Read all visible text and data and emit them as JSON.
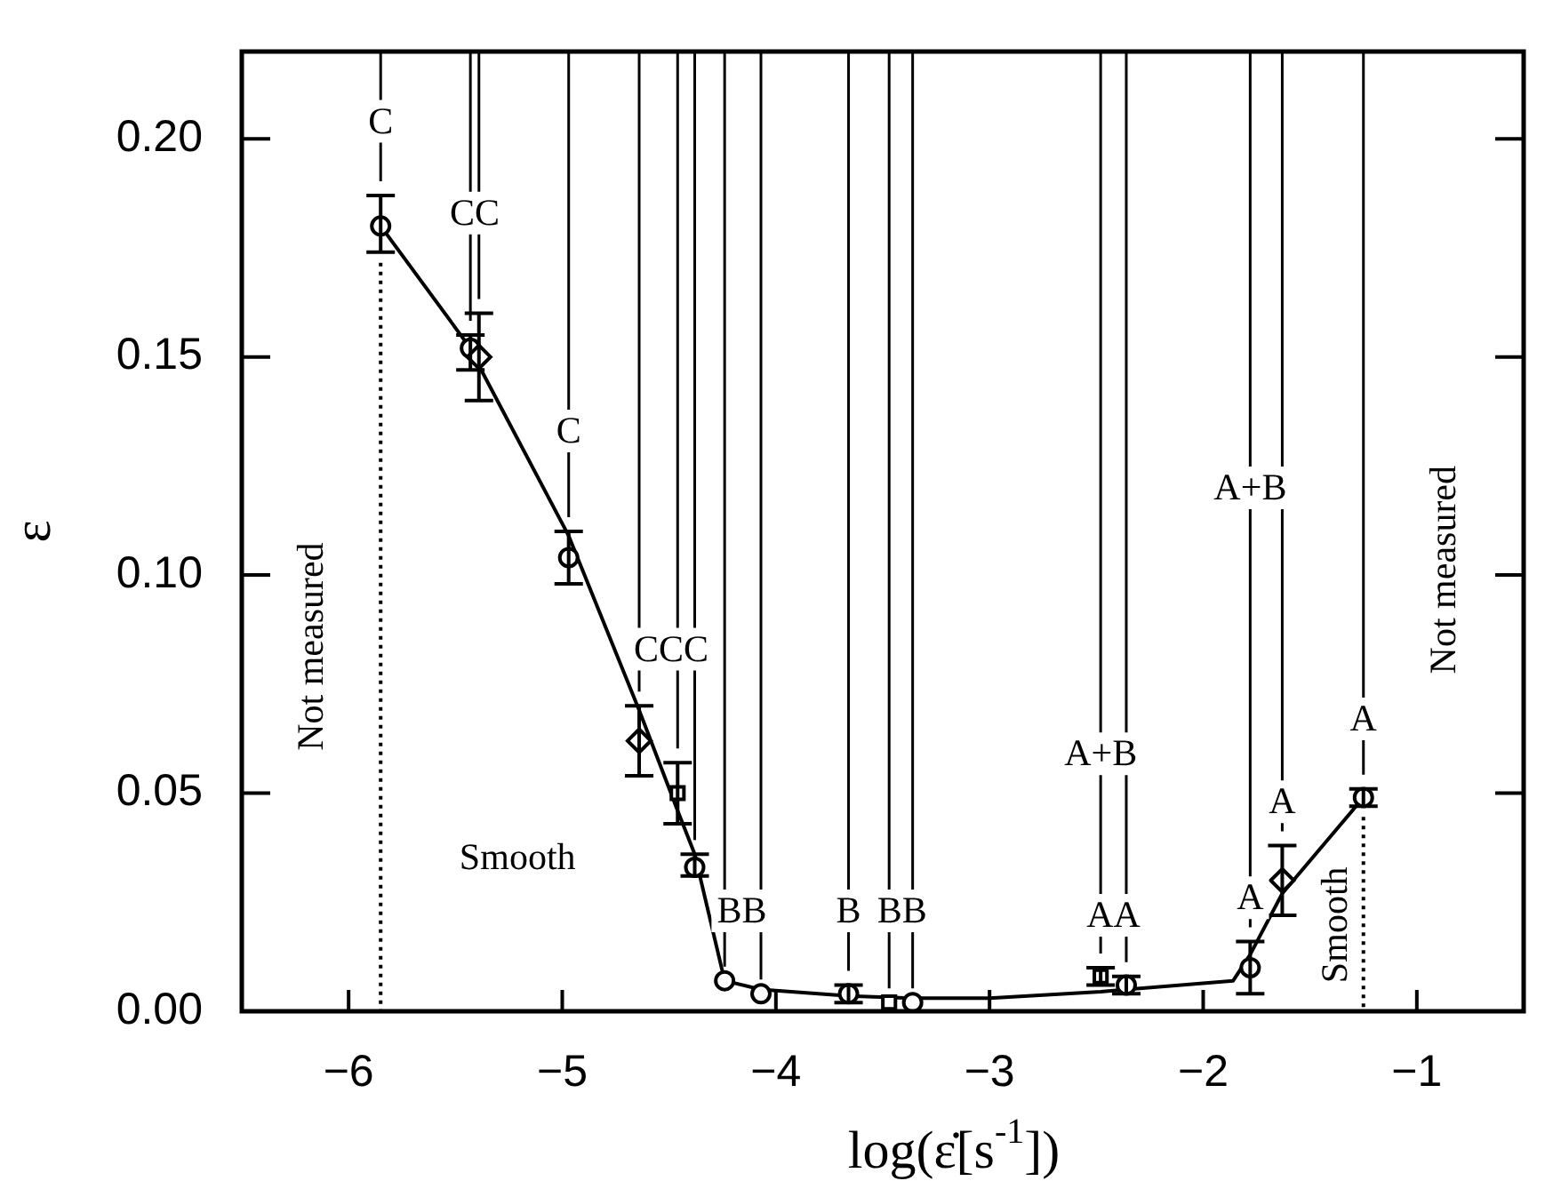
{
  "chart_data": {
    "type": "scatter",
    "xlabel": "log(ε̇[s$^{-1}$])",
    "ylabel": "ε",
    "xlim": [
      -6.5,
      -0.5
    ],
    "xticks": [
      -6,
      -5,
      -4,
      -3,
      -2,
      -1
    ],
    "ylim": [
      0,
      0.22
    ],
    "yticks": [
      {
        "value": 0,
        "label": "0.00"
      },
      0.05,
      {
        "value": 0.1,
        "label": "0.10"
      },
      0.15,
      {
        "value": 0.2,
        "label": "0.20"
      }
    ],
    "series": [
      {
        "type": "line",
        "color": "#000000",
        "marker": "none",
        "x": [
          -5.85,
          -5.43,
          -5.39,
          -4.97,
          -4.64,
          -4.46,
          -4.38,
          -4.24,
          -4.07,
          -3.66,
          -3.36,
          -3.0,
          -2.48,
          -2.36,
          -1.86,
          -1.78,
          -1.63,
          -1.25
        ],
        "values": [
          0.18,
          0.152,
          0.148,
          0.109,
          0.069,
          0.046,
          0.036,
          0.007,
          0.005,
          0.0035,
          0.003,
          0.003,
          0.0045,
          0.005,
          0.007,
          0.013,
          0.027,
          0.049
        ]
      },
      {
        "color": "#000000",
        "marker": "circle",
        "x": [
          -5.85,
          -5.43,
          -4.97,
          -4.38,
          -4.24,
          -4.07,
          -3.66,
          -3.36,
          -2.36,
          -1.78,
          -1.25
        ],
        "values": [
          0.18,
          0.152,
          0.104,
          0.033,
          0.007,
          0.004,
          0.004,
          0.002,
          0.006,
          0.01,
          0.049
        ],
        "errors": [
          [
            0.174,
            0.187
          ],
          [
            0.147,
            0.155
          ],
          [
            0.098,
            0.11
          ],
          [
            0.031,
            0.036
          ],
          null,
          null,
          [
            0.002,
            0.006
          ],
          null,
          [
            0.004,
            0.008
          ],
          [
            0.004,
            0.016
          ],
          [
            0.047,
            0.051
          ]
        ]
      },
      {
        "color": "#000000",
        "marker": "diamond",
        "x": [
          -5.39,
          -4.64,
          -1.63
        ],
        "values": [
          0.15,
          0.062,
          0.03
        ],
        "errors": [
          [
            0.14,
            0.16
          ],
          [
            0.054,
            0.07
          ],
          [
            0.022,
            0.038
          ]
        ]
      },
      {
        "color": "#000000",
        "marker": "square",
        "x": [
          -4.46,
          -3.47,
          -2.48
        ],
        "values": [
          0.05,
          0.002,
          0.008
        ],
        "errors": [
          [
            0.043,
            0.057
          ],
          null,
          [
            0.006,
            0.01
          ]
        ]
      }
    ],
    "ref_lines": [
      {
        "axis": "x",
        "value": -5.85,
        "line_style": "solid"
      },
      {
        "axis": "x",
        "value": -5.43,
        "line_style": "solid"
      },
      {
        "axis": "x",
        "value": -5.39,
        "line_style": "solid"
      },
      {
        "axis": "x",
        "value": -4.97,
        "line_style": "solid"
      },
      {
        "axis": "x",
        "value": -4.64,
        "line_style": "solid"
      },
      {
        "axis": "x",
        "value": -4.46,
        "line_style": "solid"
      },
      {
        "axis": "x",
        "value": -4.38,
        "line_style": "solid"
      },
      {
        "axis": "x",
        "value": -4.24,
        "line_style": "solid"
      },
      {
        "axis": "x",
        "value": -4.07,
        "line_style": "solid"
      },
      {
        "axis": "x",
        "value": -3.66,
        "line_style": "solid"
      },
      {
        "axis": "x",
        "value": -3.47,
        "line_style": "solid"
      },
      {
        "axis": "x",
        "value": -3.36,
        "line_style": "solid"
      },
      {
        "axis": "x",
        "value": -2.48,
        "line_style": "solid"
      },
      {
        "axis": "x",
        "value": -2.36,
        "line_style": "solid"
      },
      {
        "axis": "x",
        "value": -1.78,
        "line_style": "solid"
      },
      {
        "axis": "x",
        "value": -1.63,
        "line_style": "solid"
      },
      {
        "axis": "x",
        "value": -1.25,
        "line_style": "solid"
      },
      {
        "axis": "x",
        "value": -5.85,
        "line_style": "dotted"
      },
      {
        "axis": "x",
        "value": -1.25,
        "line_style": "dotted"
      }
    ],
    "annotations": [
      {
        "text": "C",
        "x": -5.85,
        "y": 0.204
      },
      {
        "text": "CC",
        "x": -5.41,
        "y": 0.183
      },
      {
        "text": "C",
        "x": -4.97,
        "y": 0.133
      },
      {
        "text": "CCC",
        "x": -4.49,
        "y": 0.083
      },
      {
        "text": "BB",
        "x": -4.16,
        "y": 0.023
      },
      {
        "text": "B",
        "x": -3.66,
        "y": 0.023
      },
      {
        "text": "BB",
        "x": -3.41,
        "y": 0.023
      },
      {
        "text": "A+B",
        "x": -2.48,
        "y": 0.059
      },
      {
        "text": "AA",
        "x": -2.42,
        "y": 0.022
      },
      {
        "text": "A+B",
        "x": -1.78,
        "y": 0.12
      },
      {
        "text": "A",
        "x": -1.78,
        "y": 0.026
      },
      {
        "text": "A",
        "x": -1.63,
        "y": 0.048
      },
      {
        "text": "A",
        "x": -1.25,
        "y": 0.067
      },
      "Not measured",
      "Smooth",
      "Smooth",
      "Not measured"
    ]
  }
}
